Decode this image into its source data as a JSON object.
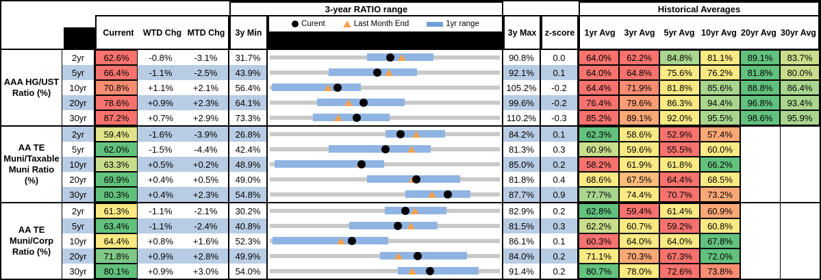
{
  "header": {
    "range_title": "3-year RATIO range",
    "averages_title": "Historical Averages",
    "value_cols": [
      "Current",
      "WTD Chg",
      "MTD Chg"
    ],
    "min_col": "3y Min",
    "max_col": "3y Max",
    "z_col": "z-score",
    "avg_cols": [
      "1yr Avg",
      "3yr Avg",
      "5yr Avg",
      "10yr Avg",
      "20yr Avg",
      "30yr Avg"
    ],
    "legend": {
      "current": "Curent",
      "last_month": "Last Month End",
      "range": "1yr range"
    }
  },
  "colors": {
    "row_band_blue": "#B8CCE4",
    "range_track_gray": "#C9C9C9",
    "range_bar_blue": "#8FB4E3",
    "legend_bar_blue": "#6FA0D6",
    "marker_orange": "#F2A14E",
    "marker_black": "#000000",
    "scale_red": "#F8736E",
    "scale_yellow": "#FBE983",
    "scale_green": "#63C17E"
  },
  "chart_data": {
    "type": "table",
    "title": "3-year RATIO range",
    "columns": [
      "Current",
      "WTD Chg",
      "MTD Chg",
      "3y Min",
      "3y Max",
      "z-score",
      "1yr Avg",
      "3yr Avg",
      "5yr Avg",
      "10yr Avg",
      "20yr Avg",
      "30yr Avg"
    ],
    "groups": [
      {
        "label": "AAA HG/UST\nRatio (%)",
        "rows": [
          {
            "tenor": "2yr",
            "band": "white",
            "current": "62.6%",
            "current_bg": "#F8736E",
            "wtd": "-0.8%",
            "mtd": "-3.1%",
            "min": "31.7%",
            "max": "90.8%",
            "z": "0.0",
            "avgs": [
              {
                "v": "64.0%",
                "bg": "#F8736E"
              },
              {
                "v": "62.2%",
                "bg": "#F8736E"
              },
              {
                "v": "84.8%",
                "bg": "#A9D58E"
              },
              {
                "v": "81.1%",
                "bg": "#FBE983"
              },
              {
                "v": "89.1%",
                "bg": "#63C17E"
              },
              {
                "v": "83.7%",
                "bg": "#C9DE8C"
              }
            ],
            "range": {
              "lo": 31.7,
              "hi": 90.8,
              "bar_lo": 56.6,
              "bar_hi": 73.7,
              "current": 62.6,
              "last_month": 65.7
            }
          },
          {
            "tenor": "5yr",
            "band": "blue",
            "current": "66.4%",
            "current_bg": "#F8736E",
            "wtd": "-1.1%",
            "mtd": "-2.5%",
            "min": "43.9%",
            "max": "92.1%",
            "z": "0.1",
            "avgs": [
              {
                "v": "64.0%",
                "bg": "#F8736E"
              },
              {
                "v": "64.8%",
                "bg": "#F8736E"
              },
              {
                "v": "75.6%",
                "bg": "#FBE983"
              },
              {
                "v": "76.2%",
                "bg": "#FBE983"
              },
              {
                "v": "81.8%",
                "bg": "#63C17E"
              },
              {
                "v": "80.0%",
                "bg": "#C9DE8C"
              }
            ],
            "range": {
              "lo": 43.9,
              "hi": 92.1,
              "bar_lo": 56.3,
              "bar_hi": 74.7,
              "current": 66.4,
              "last_month": 68.9
            }
          },
          {
            "tenor": "10yr",
            "band": "white",
            "current": "70.8%",
            "current_bg": "#F98D72",
            "wtd": "+1.1%",
            "mtd": "+2.1%",
            "min": "56.4%",
            "max": "105.2%",
            "z": "-0.2",
            "avgs": [
              {
                "v": "64.4%",
                "bg": "#F8736E"
              },
              {
                "v": "71.9%",
                "bg": "#F98D72"
              },
              {
                "v": "81.8%",
                "bg": "#FBE983"
              },
              {
                "v": "85.6%",
                "bg": "#A9D58E"
              },
              {
                "v": "88.8%",
                "bg": "#63C17E"
              },
              {
                "v": "86.4%",
                "bg": "#A9D58E"
              }
            ],
            "range": {
              "lo": 56.4,
              "hi": 105.2,
              "bar_lo": 56.8,
              "bar_hi": 75.7,
              "current": 70.8,
              "last_month": 68.7
            }
          },
          {
            "tenor": "20yr",
            "band": "blue",
            "current": "78.6%",
            "current_bg": "#F8736E",
            "wtd": "+0.9%",
            "mtd": "+2.3%",
            "min": "64.1%",
            "max": "99.6%",
            "z": "-0.2",
            "avgs": [
              {
                "v": "76.4%",
                "bg": "#F8736E"
              },
              {
                "v": "79.6%",
                "bg": "#FA9C74"
              },
              {
                "v": "86.3%",
                "bg": "#FBE983"
              },
              {
                "v": "94.4%",
                "bg": "#A9D58E"
              },
              {
                "v": "96.8%",
                "bg": "#63C17E"
              },
              {
                "v": "93.4%",
                "bg": "#A9D58E"
              }
            ],
            "range": {
              "lo": 64.1,
              "hi": 99.6,
              "bar_lo": 71.4,
              "bar_hi": 84.9,
              "current": 78.6,
              "last_month": 76.3
            }
          },
          {
            "tenor": "30yr",
            "band": "white",
            "current": "87.2%",
            "current_bg": "#F8736E",
            "wtd": "+0.7%",
            "mtd": "+2.9%",
            "min": "73.3%",
            "max": "110.2%",
            "z": "-0.3",
            "avgs": [
              {
                "v": "85.2%",
                "bg": "#F8736E"
              },
              {
                "v": "89.1%",
                "bg": "#FBA877"
              },
              {
                "v": "92.0%",
                "bg": "#FBE983"
              },
              {
                "v": "95.5%",
                "bg": "#A9D58E"
              },
              {
                "v": "98.6%",
                "bg": "#63C17E"
              },
              {
                "v": "95.9%",
                "bg": "#A9D58E"
              }
            ],
            "range": {
              "lo": 73.3,
              "hi": 110.2,
              "bar_lo": 80.2,
              "bar_hi": 92.5,
              "current": 87.2,
              "last_month": 84.3
            }
          }
        ]
      },
      {
        "label": "AA TE\nMuni/Taxable\nMuni Ratio\n(%)",
        "rows": [
          {
            "tenor": "2yr",
            "band": "blue",
            "current": "59.4%",
            "current_bg": "#E2E48A",
            "wtd": "-1.6%",
            "mtd": "-3.9%",
            "min": "26.8%",
            "max": "84.2%",
            "z": "0.1",
            "avgs": [
              {
                "v": "62.3%",
                "bg": "#63C17E"
              },
              {
                "v": "58.6%",
                "bg": "#FBE983"
              },
              {
                "v": "52.9%",
                "bg": "#F8736E"
              },
              {
                "v": "57.4%",
                "bg": "#FBA877"
              },
              null,
              null
            ],
            "range": {
              "lo": 26.8,
              "hi": 84.2,
              "bar_lo": 55.7,
              "bar_hi": 70.5,
              "current": 59.4,
              "last_month": 63.3
            }
          },
          {
            "tenor": "5yr",
            "band": "white",
            "current": "62.0%",
            "current_bg": "#63C17E",
            "wtd": "-1.5%",
            "mtd": "-4.4%",
            "min": "42.4%",
            "max": "81.3%",
            "z": "0.3",
            "avgs": [
              {
                "v": "60.9%",
                "bg": "#C9DE8C"
              },
              {
                "v": "59.6%",
                "bg": "#FBE983"
              },
              {
                "v": "55.5%",
                "bg": "#F8736E"
              },
              {
                "v": "60.0%",
                "bg": "#FBE983"
              },
              null,
              null
            ],
            "range": {
              "lo": 42.4,
              "hi": 81.3,
              "bar_lo": 52.4,
              "bar_hi": 69.6,
              "current": 62.0,
              "last_month": 66.4
            }
          },
          {
            "tenor": "10yr",
            "band": "blue",
            "current": "63.3%",
            "current_bg": "#C9DE8C",
            "wtd": "+0.5%",
            "mtd": "+0.2%",
            "min": "48.9%",
            "max": "85.0%",
            "z": "0.2",
            "avgs": [
              {
                "v": "58.2%",
                "bg": "#F8736E"
              },
              {
                "v": "61.9%",
                "bg": "#FBE983"
              },
              {
                "v": "61.8%",
                "bg": "#FBE983"
              },
              {
                "v": "66.2%",
                "bg": "#63C17E"
              },
              null,
              null
            ],
            "range": {
              "lo": 48.9,
              "hi": 85.0,
              "bar_lo": 49.6,
              "bar_hi": 66.8,
              "current": 63.3,
              "last_month": 63.1
            }
          },
          {
            "tenor": "20yr",
            "band": "white",
            "current": "69.9%",
            "current_bg": "#63C17E",
            "wtd": "+0.4%",
            "mtd": "+0.5%",
            "min": "49.0%",
            "max": "81.8%",
            "z": "0.4",
            "avgs": [
              {
                "v": "68.6%",
                "bg": "#FBE983"
              },
              {
                "v": "67.5%",
                "bg": "#FCBC7B"
              },
              {
                "v": "64.4%",
                "bg": "#F8736E"
              },
              {
                "v": "68.5%",
                "bg": "#FBE983"
              },
              null,
              null
            ],
            "range": {
              "lo": 49.0,
              "hi": 81.8,
              "bar_lo": 62.9,
              "bar_hi": 76.1,
              "current": 69.9,
              "last_month": 69.4
            }
          },
          {
            "tenor": "30yr",
            "band": "blue",
            "current": "80.3%",
            "current_bg": "#63C17E",
            "wtd": "+0.4%",
            "mtd": "+2.3%",
            "min": "54.8%",
            "max": "87.7%",
            "z": "0.9",
            "avgs": [
              {
                "v": "77.7%",
                "bg": "#A9D58E"
              },
              {
                "v": "74.4%",
                "bg": "#FBE983"
              },
              {
                "v": "70.7%",
                "bg": "#F8736E"
              },
              {
                "v": "73.2%",
                "bg": "#FBA877"
              },
              null,
              null
            ],
            "range": {
              "lo": 54.8,
              "hi": 87.7,
              "bar_lo": 74.2,
              "bar_hi": 83.5,
              "current": 80.3,
              "last_month": 78.0
            }
          }
        ]
      },
      {
        "label": "AA TE\nMuni/Corp\nRatio (%)",
        "rows": [
          {
            "tenor": "2yr",
            "band": "white",
            "current": "61.3%",
            "current_bg": "#FBE983",
            "wtd": "-1.1%",
            "mtd": "-2.1%",
            "min": "30.2%",
            "max": "82.9%",
            "z": "0.2",
            "avgs": [
              {
                "v": "62.8%",
                "bg": "#63C17E"
              },
              {
                "v": "59.4%",
                "bg": "#F8736E"
              },
              {
                "v": "61.4%",
                "bg": "#FBE983"
              },
              {
                "v": "60.9%",
                "bg": "#FBA877"
              },
              null,
              null
            ],
            "range": {
              "lo": 30.2,
              "hi": 82.9,
              "bar_lo": 56.6,
              "bar_hi": 70.6,
              "current": 61.3,
              "last_month": 63.4
            }
          },
          {
            "tenor": "5yr",
            "band": "blue",
            "current": "63.4%",
            "current_bg": "#63C17E",
            "wtd": "-1.1%",
            "mtd": "-2.4%",
            "min": "40.8%",
            "max": "81.5%",
            "z": "0.3",
            "avgs": [
              {
                "v": "62.2%",
                "bg": "#C9DE8C"
              },
              {
                "v": "60.7%",
                "bg": "#FBE983"
              },
              {
                "v": "59.2%",
                "bg": "#F8736E"
              },
              {
                "v": "60.8%",
                "bg": "#FBE983"
              },
              null,
              null
            ],
            "range": {
              "lo": 40.8,
              "hi": 81.5,
              "bar_lo": 54.8,
              "bar_hi": 70.5,
              "current": 63.4,
              "last_month": 65.8
            }
          },
          {
            "tenor": "10yr",
            "band": "white",
            "current": "64.4%",
            "current_bg": "#FBE983",
            "wtd": "+0.8%",
            "mtd": "+1.6%",
            "min": "52.3%",
            "max": "86.1%",
            "z": "0.1",
            "avgs": [
              {
                "v": "60.3%",
                "bg": "#F8736E"
              },
              {
                "v": "64.0%",
                "bg": "#FBE983"
              },
              {
                "v": "64.0%",
                "bg": "#FBE983"
              },
              {
                "v": "67.8%",
                "bg": "#63C17E"
              },
              null,
              null
            ],
            "range": {
              "lo": 52.3,
              "hi": 86.1,
              "bar_lo": 52.7,
              "bar_hi": 69.7,
              "current": 64.4,
              "last_month": 62.8
            }
          },
          {
            "tenor": "20yr",
            "band": "blue",
            "current": "71.8%",
            "current_bg": "#7FC886",
            "wtd": "+0.9%",
            "mtd": "+2.8%",
            "min": "49.9%",
            "max": "84.0%",
            "z": "0.2",
            "avgs": [
              {
                "v": "71.1%",
                "bg": "#FBE983"
              },
              {
                "v": "70.3%",
                "bg": "#FBA877"
              },
              {
                "v": "67.3%",
                "bg": "#F8736E"
              },
              {
                "v": "72.0%",
                "bg": "#63C17E"
              },
              null,
              null
            ],
            "range": {
              "lo": 49.9,
              "hi": 84.0,
              "bar_lo": 66.2,
              "bar_hi": 79.1,
              "current": 71.8,
              "last_month": 69.0
            }
          },
          {
            "tenor": "30yr",
            "band": "white",
            "current": "80.1%",
            "current_bg": "#63C17E",
            "wtd": "+0.9%",
            "mtd": "+3.0%",
            "min": "54.0%",
            "max": "91.4%",
            "z": "0.2",
            "avgs": [
              {
                "v": "80.7%",
                "bg": "#63C17E"
              },
              {
                "v": "78.0%",
                "bg": "#FBE983"
              },
              {
                "v": "72.6%",
                "bg": "#F8736E"
              },
              {
                "v": "73.8%",
                "bg": "#F98D72"
              },
              null,
              null
            ],
            "range": {
              "lo": 54.0,
              "hi": 91.4,
              "bar_lo": 74.8,
              "bar_hi": 87.9,
              "current": 80.1,
              "last_month": 77.1
            }
          }
        ]
      }
    ]
  }
}
